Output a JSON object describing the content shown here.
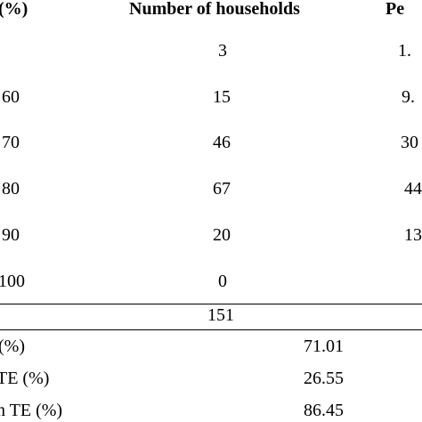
{
  "header": {
    "col1": "(%)",
    "col2": "Number of households",
    "col3": "Pe"
  },
  "rows": [
    {
      "range": "",
      "households": "3",
      "percent": "1."
    },
    {
      "range": "60",
      "households": "15",
      "percent": "9."
    },
    {
      "range": "70",
      "households": "46",
      "percent": "30"
    },
    {
      "range": "80",
      "households": "67",
      "percent": "44"
    },
    {
      "range": "90",
      "households": "20",
      "percent": "13"
    },
    {
      "range": "100",
      "households": "0",
      "percent": ""
    }
  ],
  "total": "151",
  "stats": [
    {
      "label": "(%)",
      "value": "71.01"
    },
    {
      "label": "TE (%)",
      "value": "26.55"
    },
    {
      "label": "n TE (%)",
      "value": "86.45"
    }
  ]
}
